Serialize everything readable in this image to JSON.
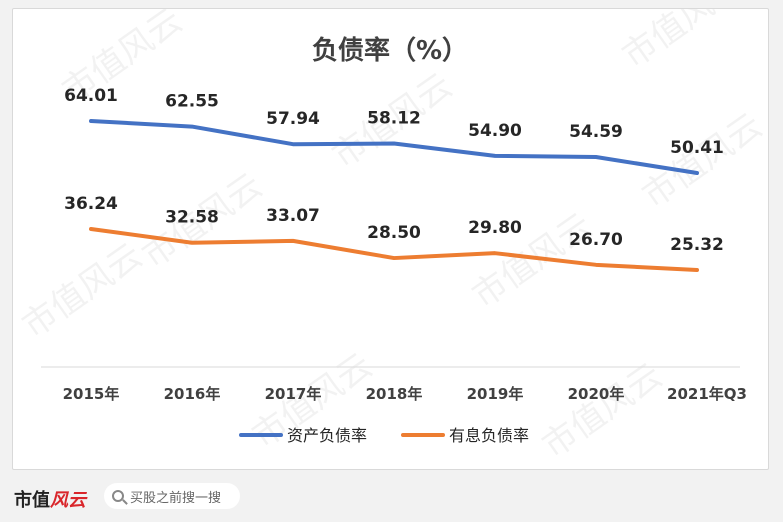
{
  "chart_data": {
    "type": "line",
    "title": "负债率（%）",
    "categories": [
      "2015年",
      "2016年",
      "2017年",
      "2018年",
      "2019年",
      "2020年",
      "2021年Q3"
    ],
    "series": [
      {
        "name": "资产负债率",
        "values": [
          64.01,
          62.55,
          57.94,
          58.12,
          54.9,
          54.59,
          50.41
        ],
        "labels": [
          "64.01",
          "62.55",
          "57.94",
          "58.12",
          "54.90",
          "54.59",
          "50.41"
        ],
        "color": "#4472c4"
      },
      {
        "name": "有息负债率",
        "values": [
          36.24,
          32.58,
          33.07,
          28.5,
          29.8,
          26.7,
          25.32
        ],
        "labels": [
          "36.24",
          "32.58",
          "33.07",
          "28.50",
          "29.80",
          "26.70",
          "25.32"
        ],
        "color": "#ed7d31"
      }
    ],
    "grid": false,
    "legend": "bottom"
  },
  "watermark": "市值风云",
  "footer": {
    "logo_black": "市值",
    "logo_red": "风云",
    "search_placeholder": "买股之前搜一搜"
  }
}
